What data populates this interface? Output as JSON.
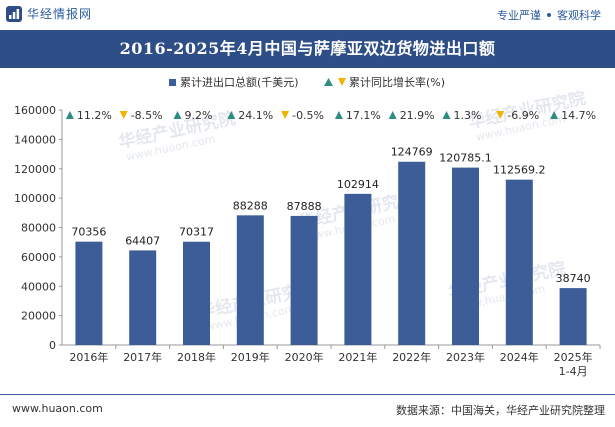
{
  "header": {
    "brand": "华经情报网",
    "tagline_left": "专业严谨",
    "tagline_right": "客观科学"
  },
  "title": "2016-2025年4月中国与萨摩亚双边货物进出口额",
  "watermark": {
    "cn": "华经产业研究院",
    "url": "www.huaon.com"
  },
  "chart_data": {
    "type": "bar",
    "categories": [
      "2016年",
      "2017年",
      "2018年",
      "2019年",
      "2020年",
      "2021年",
      "2022年",
      "2023年",
      "2024年",
      "2025年\n1-4月"
    ],
    "series": [
      {
        "name": "累计进出口总额(千美元)",
        "values": [
          70356,
          64407,
          70317,
          88288,
          87888,
          102914,
          124769,
          120785.1,
          112569.2,
          38740
        ],
        "labels": [
          "70356",
          "64407",
          "70317",
          "88288",
          "87888",
          "102914",
          "124769",
          "120785.1",
          "112569.2",
          "38740"
        ],
        "color": "#3d5d98"
      },
      {
        "name": "累计同比增长率(%)",
        "values": [
          11.2,
          -8.5,
          9.2,
          24.1,
          -0.5,
          17.1,
          21.9,
          1.3,
          -6.9,
          14.7
        ],
        "labels": [
          "11.2%",
          "-8.5%",
          "9.2%",
          "24.1%",
          "-0.5%",
          "17.1%",
          "21.9%",
          "1.3%",
          "-6.9%",
          "14.7%"
        ],
        "up_color": "#2d8d83",
        "down_color": "#f0b400"
      }
    ],
    "y_ticks": [
      "0",
      "20000",
      "40000",
      "60000",
      "80000",
      "100000",
      "120000",
      "140000",
      "160000"
    ],
    "ylim": [
      0,
      160000
    ],
    "legend_position": "top-center",
    "grid": false
  },
  "footer": {
    "website": "www.huaon.com",
    "source": "数据来源：中国海关，华经产业研究院整理"
  }
}
